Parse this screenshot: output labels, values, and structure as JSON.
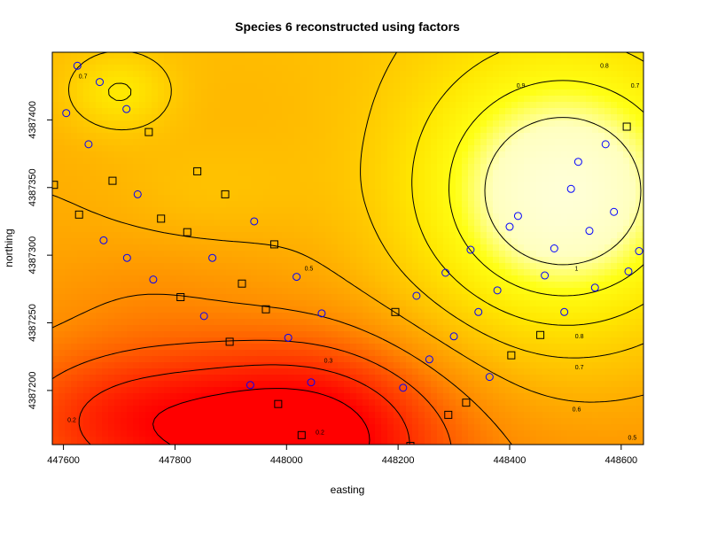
{
  "chart_data": {
    "type": "heatmap",
    "title": "Species 6 reconstructed using factors",
    "xlabel": "easting",
    "ylabel": "northing",
    "xlim": [
      447580,
      448640
    ],
    "ylim": [
      4387160,
      4387450
    ],
    "x_ticks": [
      447600,
      447800,
      448000,
      448200,
      448400,
      448600
    ],
    "y_ticks": [
      4387200,
      4387250,
      4387300,
      4387350,
      4387400
    ],
    "x_tick_labels": [
      "447600",
      "447800",
      "448000",
      "448200",
      "448400",
      "448600"
    ],
    "y_tick_labels": [
      "4387200",
      "4387250",
      "4387300",
      "4387350",
      "4387400"
    ],
    "color_scale": {
      "low": "#ff0000",
      "mid": "#ffa500",
      "high": "#ffff00",
      "top": "#ffffe0"
    },
    "contour_labels": [
      {
        "text": "0.7",
        "x": 447635,
        "y": 4387432
      },
      {
        "text": "0.9",
        "x": 448420,
        "y": 4387425
      },
      {
        "text": "0.8",
        "x": 448570,
        "y": 4387440
      },
      {
        "text": "0.7",
        "x": 448625,
        "y": 4387425
      },
      {
        "text": "0.5",
        "x": 448040,
        "y": 4387290
      },
      {
        "text": "1",
        "x": 448520,
        "y": 4387290
      },
      {
        "text": "0.8",
        "x": 448525,
        "y": 4387240
      },
      {
        "text": "0.7",
        "x": 448525,
        "y": 4387217
      },
      {
        "text": "0.6",
        "x": 448520,
        "y": 4387186
      },
      {
        "text": "0.5",
        "x": 448620,
        "y": 4387165
      },
      {
        "text": "0.3",
        "x": 448075,
        "y": 4387222
      },
      {
        "text": "0.2",
        "x": 448060,
        "y": 4387169
      },
      {
        "text": "0.2",
        "x": 447615,
        "y": 4387178
      }
    ],
    "series": [
      {
        "marker": "circle",
        "color": "#0000ff",
        "x": [
          447625,
          447605,
          447665,
          447713,
          447645,
          447733,
          447672,
          447714,
          447761,
          447867,
          447852,
          447935,
          447942,
          448003,
          448018,
          448063,
          448044,
          448209,
          448233,
          448256,
          448285,
          448300,
          448330,
          448344,
          448364,
          448378,
          448400,
          448415,
          448463,
          448480,
          448498,
          448510,
          448523,
          448543,
          448553,
          448572,
          448587,
          448613,
          448632
        ],
        "y": [
          4387440,
          4387405,
          4387428,
          4387408,
          4387382,
          4387345,
          4387311,
          4387298,
          4387282,
          4387298,
          4387255,
          4387204,
          4387325,
          4387239,
          4387284,
          4387257,
          4387206,
          4387202,
          4387270,
          4387223,
          4387287,
          4387240,
          4387304,
          4387258,
          4387210,
          4387274,
          4387321,
          4387329,
          4387285,
          4387305,
          4387258,
          4387349,
          4387369,
          4387318,
          4387276,
          4387382,
          4387332,
          4387288,
          4387303
        ]
      },
      {
        "marker": "square",
        "color": "#000000",
        "x": [
          447583,
          447628,
          447688,
          447753,
          447775,
          447822,
          447810,
          447840,
          447890,
          447920,
          447898,
          447963,
          447978,
          447985,
          448027,
          448222,
          448195,
          448290,
          448322,
          448403,
          448455,
          448610
        ],
        "y": [
          4387352,
          4387330,
          4387355,
          4387391,
          4387327,
          4387317,
          4387269,
          4387362,
          4387345,
          4387279,
          4387236,
          4387260,
          4387308,
          4387190,
          4387167,
          4387159,
          4387258,
          4387182,
          4387191,
          4387226,
          4387241,
          4387395
        ]
      }
    ]
  }
}
